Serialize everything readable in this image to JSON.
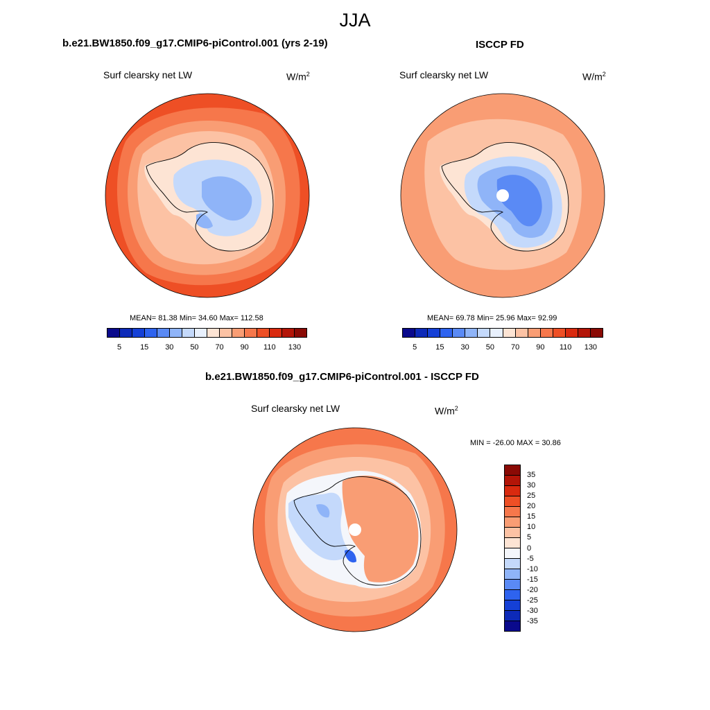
{
  "figure": {
    "title": "JJA"
  },
  "panels": [
    {
      "id": "model",
      "title": "b.e21.BW1850.f09_g17.CMIP6-piControl.001 (yrs 2-19)",
      "variable": "Surf clearsky net LW",
      "units": "W/m",
      "units_sup": "2",
      "stats": "MEAN=  81.38  Min=  34.60  Max= 112.58",
      "colorbar": {
        "colors": [
          "#0a0a8c",
          "#0d2ab8",
          "#1540d6",
          "#2e63ef",
          "#5a8af5",
          "#8fb4f8",
          "#c4d9fb",
          "#e8f0fd",
          "#fde4d4",
          "#fcc2a4",
          "#f99d74",
          "#f6774b",
          "#ee4f25",
          "#d92a0f",
          "#b31508",
          "#8a0a05"
        ],
        "tick_labels": [
          "5",
          "15",
          "30",
          "50",
          "70",
          "90",
          "110",
          "130"
        ]
      }
    },
    {
      "id": "obs",
      "title": "ISCCP FD",
      "variable": "Surf clearsky net LW",
      "units": "W/m",
      "units_sup": "2",
      "stats": "MEAN=  69.78  Min=  25.96  Max=  92.99",
      "colorbar": {
        "colors": [
          "#0a0a8c",
          "#0d2ab8",
          "#1540d6",
          "#2e63ef",
          "#5a8af5",
          "#8fb4f8",
          "#c4d9fb",
          "#e8f0fd",
          "#fde4d4",
          "#fcc2a4",
          "#f99d74",
          "#f6774b",
          "#ee4f25",
          "#d92a0f",
          "#b31508",
          "#8a0a05"
        ],
        "tick_labels": [
          "5",
          "15",
          "30",
          "50",
          "70",
          "90",
          "110",
          "130"
        ]
      }
    },
    {
      "id": "diff",
      "title": "b.e21.BW1850.f09_g17.CMIP6-piControl.001 - ISCCP FD",
      "variable": "Surf clearsky net LW",
      "units": "W/m",
      "units_sup": "2",
      "stats": "MIN = -26.00 MAX =  30.86",
      "colorbar": {
        "colors_top_to_bottom": [
          "#8a0a05",
          "#b31508",
          "#d92a0f",
          "#ee4f25",
          "#f6774b",
          "#f99d74",
          "#fcc2a4",
          "#fde4d4",
          "#f4f6fb",
          "#c4d9fb",
          "#8fb4f8",
          "#5a8af5",
          "#2e63ef",
          "#1540d6",
          "#0d2ab8",
          "#0a0a8c"
        ],
        "tick_labels": [
          "35",
          "30",
          "25",
          "20",
          "15",
          "10",
          "5",
          "0",
          "-5",
          "-10",
          "-15",
          "-20",
          "-25",
          "-30",
          "-35"
        ]
      }
    }
  ],
  "map_colors": {
    "outer_model": "#ee4f25",
    "ring2_model": "#f6774b",
    "ring3_model": "#f99d74",
    "ring4_model": "#fcc2a4",
    "coast_model": "#fde4d4",
    "interior_model": "#c4d9fb",
    "deep_model": "#8fb4f8",
    "outer_obs": "#f99d74",
    "ring_obs": "#fcc2a4",
    "coast_obs": "#fde4d4",
    "interior_obs": "#c4d9fb",
    "deep_obs": "#8fb4f8",
    "core_obs": "#5a8af5",
    "diff_outer": "#f6774b",
    "diff_mid": "#f99d74",
    "diff_light": "#fcc2a4",
    "diff_zero": "#f4f6fb",
    "diff_neg": "#c4d9fb",
    "diff_neg2": "#8fb4f8",
    "diff_neg3": "#2e63ef"
  }
}
